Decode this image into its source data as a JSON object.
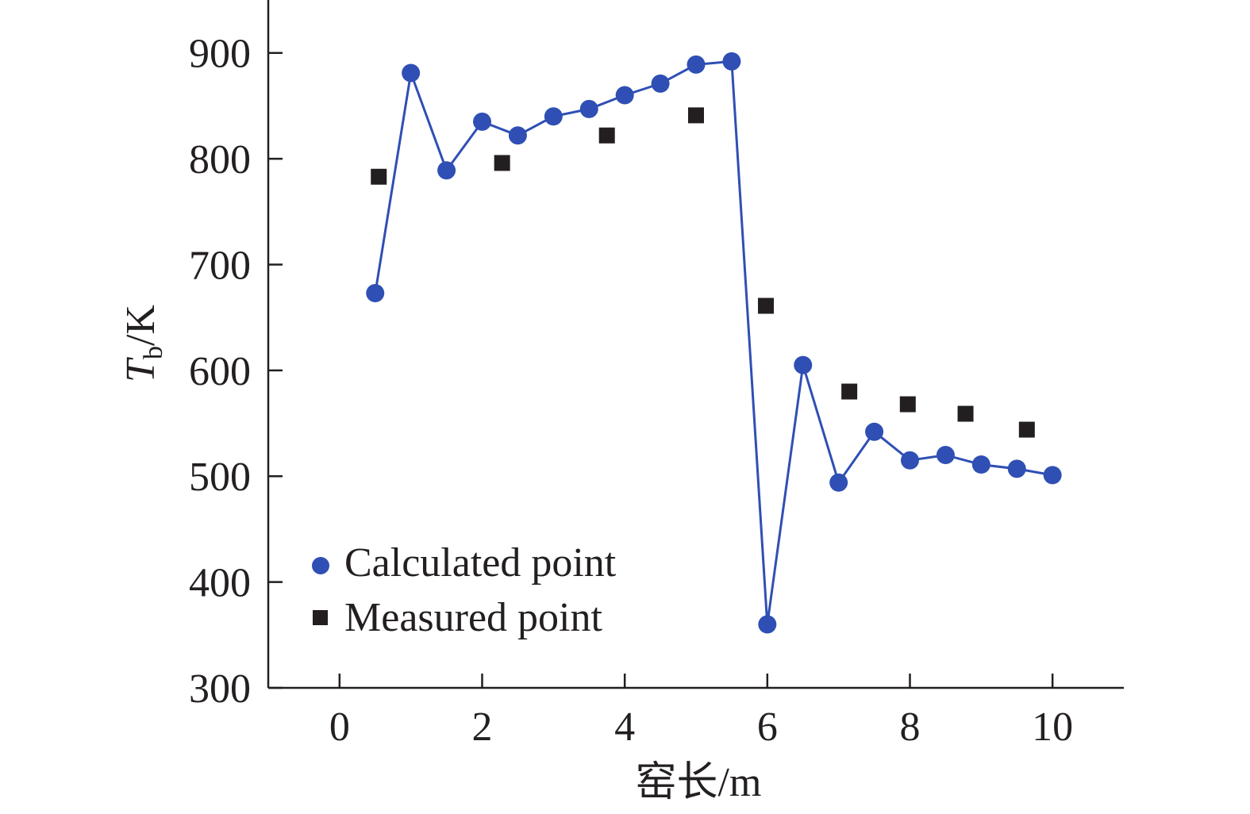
{
  "chart_data": {
    "type": "scatter",
    "xlabel": "窑长/m",
    "ylabel": {
      "symbol": "T",
      "subscript": "b",
      "unit": "/K"
    },
    "xlim": [
      -1,
      11
    ],
    "ylim": [
      300,
      950
    ],
    "xticks": [
      0,
      2,
      4,
      6,
      8,
      10
    ],
    "yticks": [
      300,
      400,
      500,
      600,
      700,
      800,
      900
    ],
    "grid": false,
    "legend_position": "bottom-left",
    "series": [
      {
        "name": "Calculated point",
        "marker": "circle",
        "line": true,
        "color": "#2f4fb4",
        "x": [
          0.5,
          1.0,
          1.5,
          2.0,
          2.5,
          3.0,
          3.5,
          4.0,
          4.5,
          5.0,
          5.5,
          6.0,
          6.5,
          7.0,
          7.5,
          8.0,
          8.5,
          9.0,
          9.5,
          10.0
        ],
        "y": [
          673,
          881,
          789,
          835,
          822,
          840,
          847,
          860,
          871,
          889,
          892,
          360,
          605,
          494,
          542,
          515,
          520,
          511,
          507,
          501
        ]
      },
      {
        "name": "Measured point",
        "marker": "square",
        "line": false,
        "color": "#231f20",
        "x": [
          0.55,
          2.28,
          3.75,
          5.0,
          5.98,
          7.15,
          7.97,
          8.78,
          9.64
        ],
        "y": [
          783,
          796,
          822,
          841,
          661,
          580,
          568,
          559,
          544
        ]
      }
    ]
  }
}
